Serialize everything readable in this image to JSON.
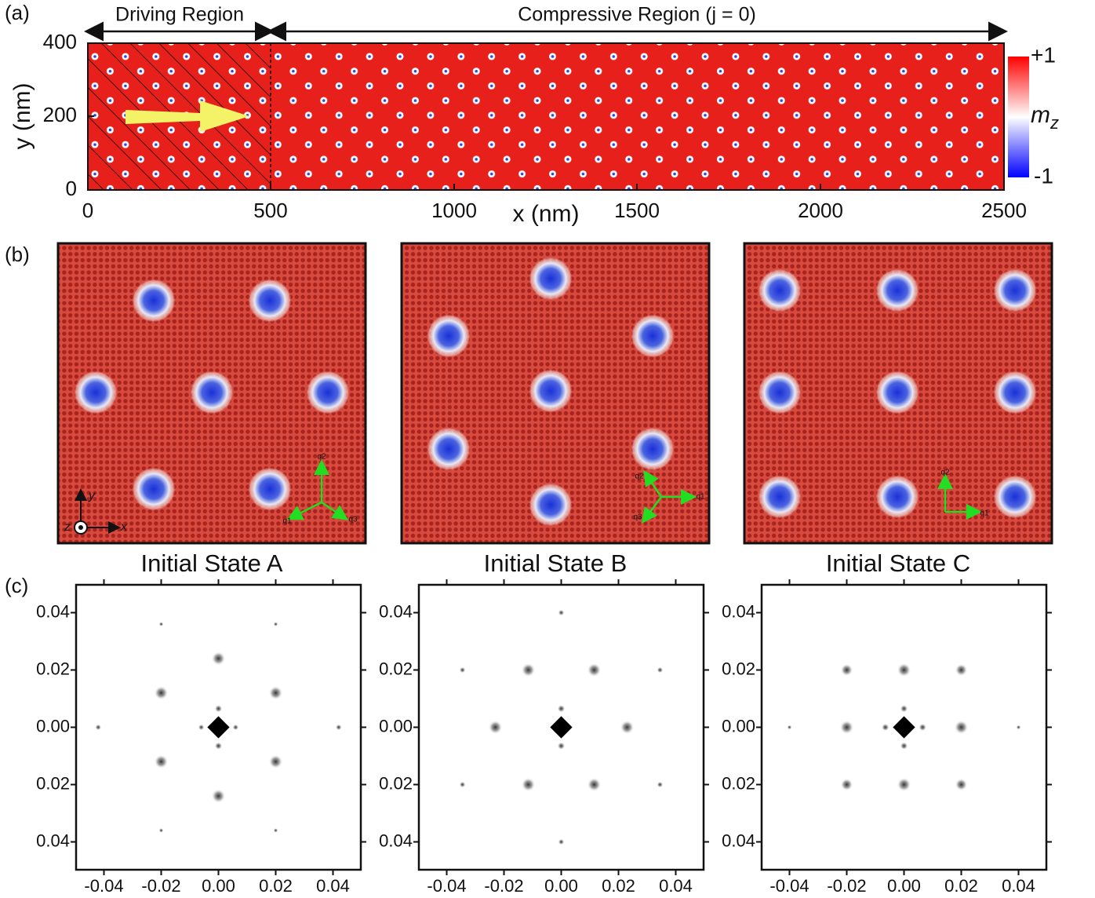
{
  "panel_a": {
    "label": "(a)",
    "driving_region": "Driving Region",
    "compressive_region": "Compressive Region (j = 0)",
    "x_label": "x (nm)",
    "y_label": "y (nm)",
    "x_ticks": [
      "0",
      "500",
      "1000",
      "1500",
      "2000",
      "2500"
    ],
    "y_ticks": [
      "0",
      "200",
      "400"
    ],
    "colorbar": {
      "max": "+1",
      "min": "-1",
      "label": "m",
      "label_sub": "z"
    }
  },
  "panel_b": {
    "label": "(b)",
    "axes": [
      "x",
      "y",
      "z"
    ],
    "panels": [
      {
        "title": "Initial State A",
        "q_labels": [
          "q1",
          "q2",
          "q3"
        ]
      },
      {
        "title": "Initial State B",
        "q_labels": [
          "q1",
          "q2",
          "q3"
        ]
      },
      {
        "title": "Initial State C",
        "q_labels": [
          "q1",
          "q2"
        ]
      }
    ]
  },
  "panel_c": {
    "label": "(c)",
    "x_ticks": [
      "-0.04",
      "-0.02",
      "0.00",
      "0.02",
      "0.04"
    ],
    "y_ticks": [
      "0.04",
      "0.02",
      "0.00",
      "0.02",
      "0.04"
    ]
  }
}
